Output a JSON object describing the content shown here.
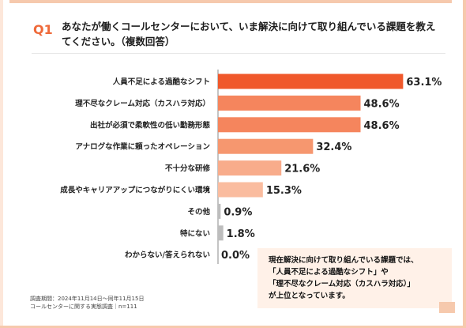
{
  "question": {
    "number": "Q1",
    "title": "あなたが働くコールセンターにおいて、いま解決に向けて取り組んでいる課題を教えてください。（複数回答）"
  },
  "chart_data": {
    "type": "bar",
    "orientation": "horizontal",
    "categories": [
      "人員不足による過酷なシフト",
      "理不尽なクレーム対応（カスハラ対応）",
      "出社が必須で柔軟性の低い勤務形態",
      "アナログな作業に頼ったオペレーション",
      "不十分な研修",
      "成長やキャリアアップにつながりにくい環境",
      "その他",
      "特にない",
      "わからない/答えられない"
    ],
    "values": [
      63.1,
      48.6,
      48.6,
      32.4,
      21.6,
      15.3,
      0.9,
      1.8,
      0.0
    ],
    "value_labels": [
      "63.1%",
      "48.6%",
      "48.6%",
      "32.4%",
      "21.6%",
      "15.3%",
      "0.9%",
      "1.8%",
      "0.0%"
    ],
    "colors": [
      "#f0582b",
      "#f5855d",
      "#f5855d",
      "#f6976f",
      "#f8ac8b",
      "#fabc9f",
      "#bdbdbd",
      "#bdbdbd",
      "#bdbdbd"
    ],
    "xlim": [
      0,
      70
    ]
  },
  "note": {
    "lines": [
      "現在解決に向けて取り組んでいる課題では、",
      "「人員不足による過酷なシフト」や",
      "「理不尽なクレーム対応（カスハラ対応）」",
      "が上位となっています。"
    ]
  },
  "footer": {
    "period": "調査期間：2024年11月14日～同年11月15日",
    "survey": "コールセンターに関する実態調査｜n=111"
  }
}
